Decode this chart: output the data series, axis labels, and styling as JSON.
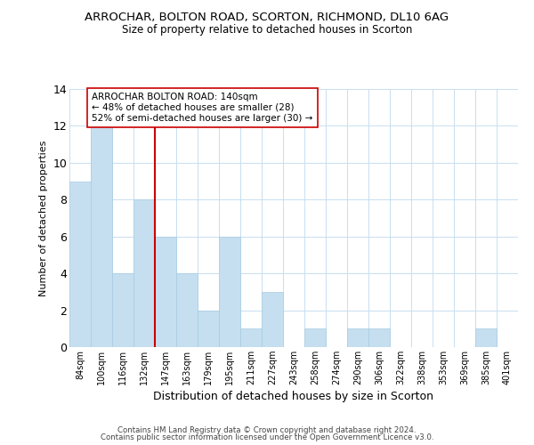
{
  "title": "ARROCHAR, BOLTON ROAD, SCORTON, RICHMOND, DL10 6AG",
  "subtitle": "Size of property relative to detached houses in Scorton",
  "xlabel": "Distribution of detached houses by size in Scorton",
  "ylabel": "Number of detached properties",
  "bar_labels": [
    "84sqm",
    "100sqm",
    "116sqm",
    "132sqm",
    "147sqm",
    "163sqm",
    "179sqm",
    "195sqm",
    "211sqm",
    "227sqm",
    "243sqm",
    "258sqm",
    "274sqm",
    "290sqm",
    "306sqm",
    "322sqm",
    "338sqm",
    "353sqm",
    "369sqm",
    "385sqm",
    "401sqm"
  ],
  "bar_values": [
    9,
    12,
    4,
    8,
    6,
    4,
    2,
    6,
    1,
    3,
    0,
    1,
    0,
    1,
    1,
    0,
    0,
    0,
    0,
    1,
    0
  ],
  "bar_color": "#c5dff0",
  "bar_edge_color": "#a8cce0",
  "grid_color": "#c8dff0",
  "vline_color": "#cc0000",
  "annotation_text": "ARROCHAR BOLTON ROAD: 140sqm\n← 48% of detached houses are smaller (28)\n52% of semi-detached houses are larger (30) →",
  "annotation_bbox_edgecolor": "#cc0000",
  "annotation_bbox_facecolor": "#ffffff",
  "ylim": [
    0,
    14
  ],
  "yticks": [
    0,
    2,
    4,
    6,
    8,
    10,
    12,
    14
  ],
  "footer1": "Contains HM Land Registry data © Crown copyright and database right 2024.",
  "footer2": "Contains public sector information licensed under the Open Government Licence v3.0."
}
